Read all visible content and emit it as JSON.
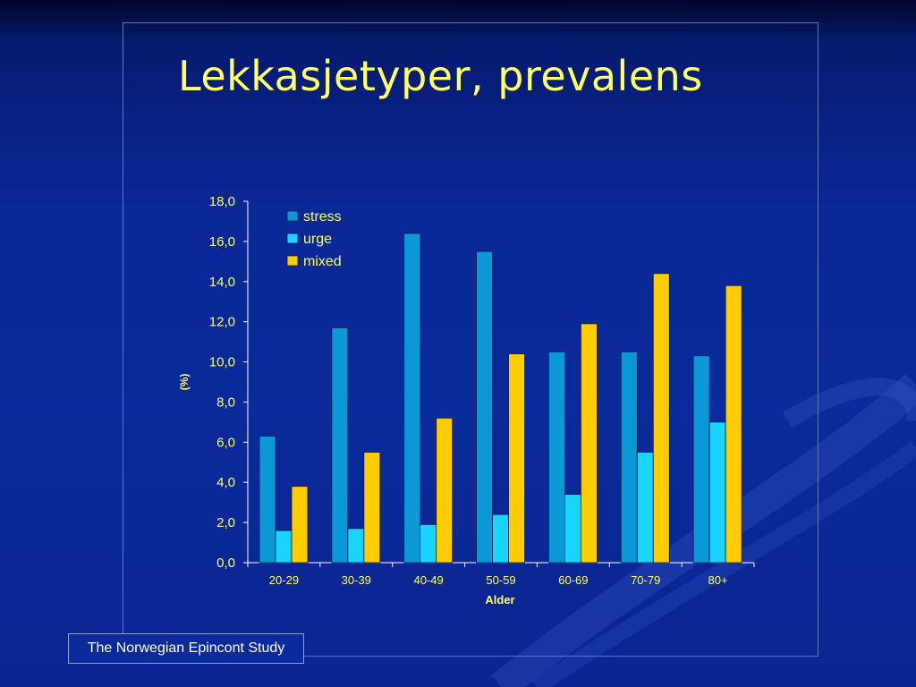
{
  "slide": {
    "title": "Lekkasjetyper, prevalens",
    "footer": "The Norwegian Epincont Study"
  },
  "colors": {
    "text_yellow": "#ffff66",
    "stress": "#0a99d6",
    "urge": "#19d4ff",
    "mixed": "#ffcc00"
  },
  "chart_data": {
    "type": "bar",
    "title": "",
    "xlabel": "Alder",
    "ylabel": "(%)",
    "ylim": [
      0,
      18
    ],
    "yticks": [
      "0,0",
      "2,0",
      "4,0",
      "6,0",
      "8,0",
      "10,0",
      "12,0",
      "14,0",
      "16,0",
      "18,0"
    ],
    "categories": [
      "20-29",
      "30-39",
      "40-49",
      "50-59",
      "60-69",
      "70-79",
      "80+"
    ],
    "series": [
      {
        "name": "stress",
        "values": [
          6.3,
          11.7,
          16.4,
          15.5,
          10.5,
          10.5,
          10.3
        ]
      },
      {
        "name": "urge",
        "values": [
          1.6,
          1.7,
          1.9,
          2.4,
          3.4,
          5.5,
          7.0
        ]
      },
      {
        "name": "mixed",
        "values": [
          3.8,
          5.5,
          7.2,
          10.4,
          11.9,
          14.4,
          13.8
        ]
      }
    ],
    "legend_position": "top-left",
    "grid": false
  }
}
